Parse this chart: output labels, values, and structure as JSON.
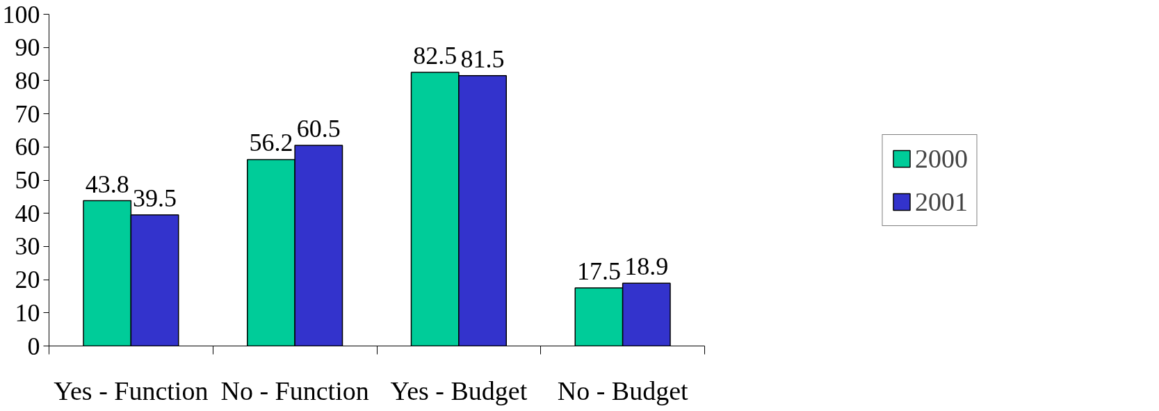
{
  "chart_data": {
    "type": "bar",
    "categories": [
      "Yes - Function",
      "No - Function",
      "Yes - Budget",
      "No - Budget"
    ],
    "series": [
      {
        "name": "2000",
        "color": "#00cc99",
        "values": [
          43.8,
          56.2,
          82.5,
          17.5
        ]
      },
      {
        "name": "2001",
        "color": "#3333cc",
        "values": [
          39.5,
          60.5,
          81.5,
          18.9
        ]
      }
    ],
    "ylim": [
      0,
      100
    ],
    "yticks": [
      0,
      10,
      20,
      30,
      40,
      50,
      60,
      70,
      80,
      90,
      100
    ],
    "grid": false,
    "legend": "right",
    "data_labels": true
  }
}
